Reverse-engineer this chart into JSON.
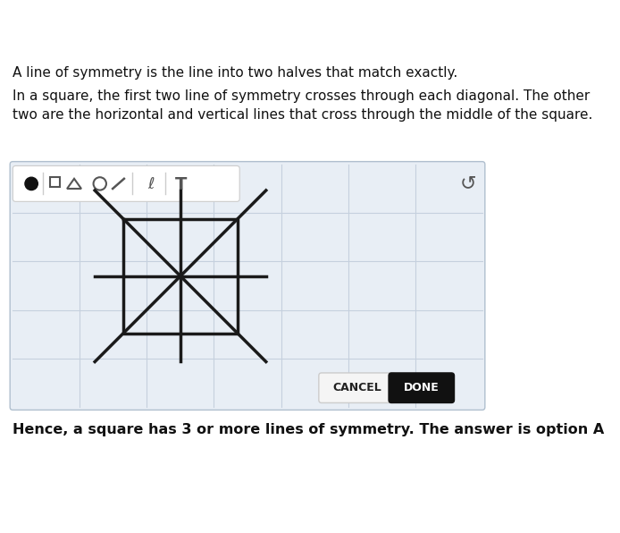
{
  "bg_color": "#ffffff",
  "panel_bg": "#dce6f0",
  "panel_bg_light": "#e8eef5",
  "text1": "A line of symmetry is the line into two halves that match exactly.",
  "text2": "In a square, the first two line of symmetry crosses through each diagonal. The other\ntwo are the horizontal and vertical lines that cross through the middle of the square.",
  "bottom_text": "Hence, a square has 3 or more lines of symmetry. The answer is option A",
  "cancel_text": "CANCEL",
  "done_text": "DONE",
  "square_color": "#1a1a1a",
  "line_color": "#1a1a1a",
  "square_lw": 2.5,
  "sym_lw": 2.5,
  "toolbar_bg": "#ffffff",
  "grid_color": "#c5d0de"
}
